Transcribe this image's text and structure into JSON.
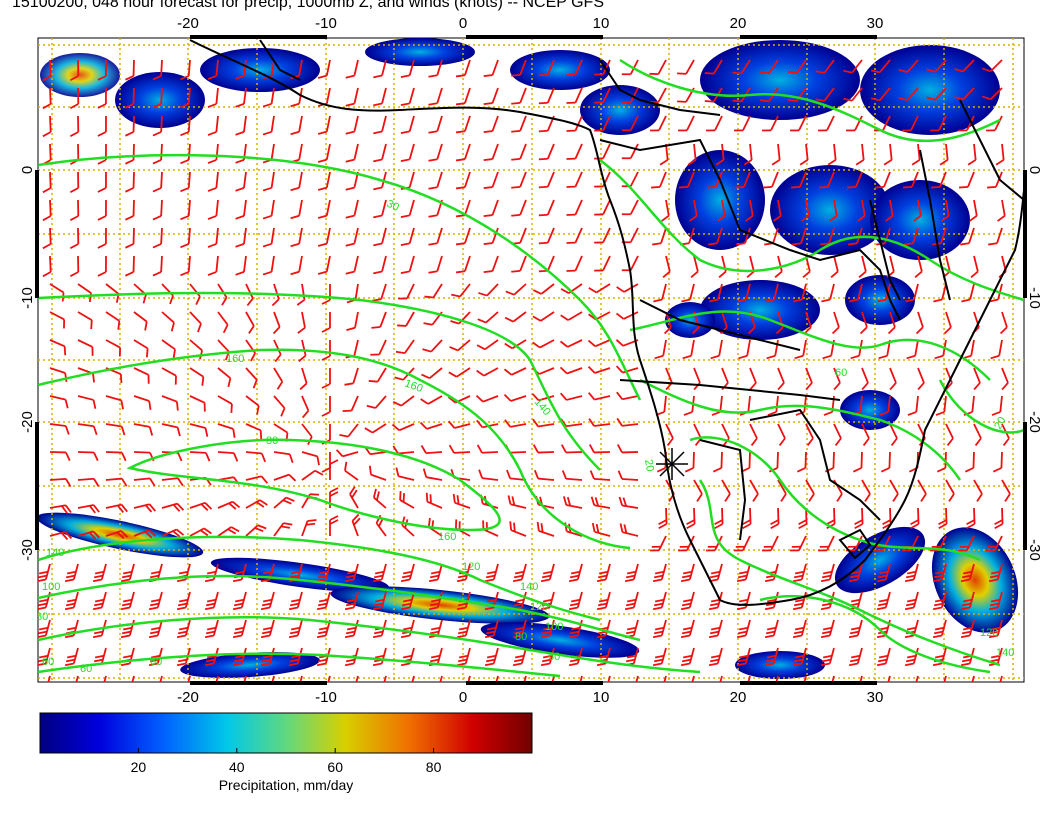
{
  "title": "15100200, 048 hour forecast for precip, 1000mb Z, and winds (knots) -- NCEP GFS",
  "map": {
    "lon_ticks": [
      "-20",
      "-10",
      "0",
      "10",
      "20",
      "30"
    ],
    "lat_ticks": [
      "0",
      "-10",
      "-20",
      "-30"
    ],
    "contour_labels": [
      "30",
      "160",
      "160",
      "80",
      "140",
      "20",
      "160",
      "140",
      "120",
      "100",
      "80",
      "60",
      "60",
      "140",
      "120",
      "100",
      "80",
      "60",
      "60",
      "120",
      "140",
      "60",
      "20"
    ],
    "colors": {
      "contour": "#22dd22",
      "barb": "#ee1111",
      "coast": "#000000",
      "grid": "#d8b000"
    }
  },
  "colorbar": {
    "ticks": [
      "20",
      "40",
      "60",
      "80"
    ],
    "tick_values": [
      20,
      40,
      60,
      80
    ],
    "range": [
      0,
      100
    ],
    "label": "Precipitation, mm/day"
  }
}
